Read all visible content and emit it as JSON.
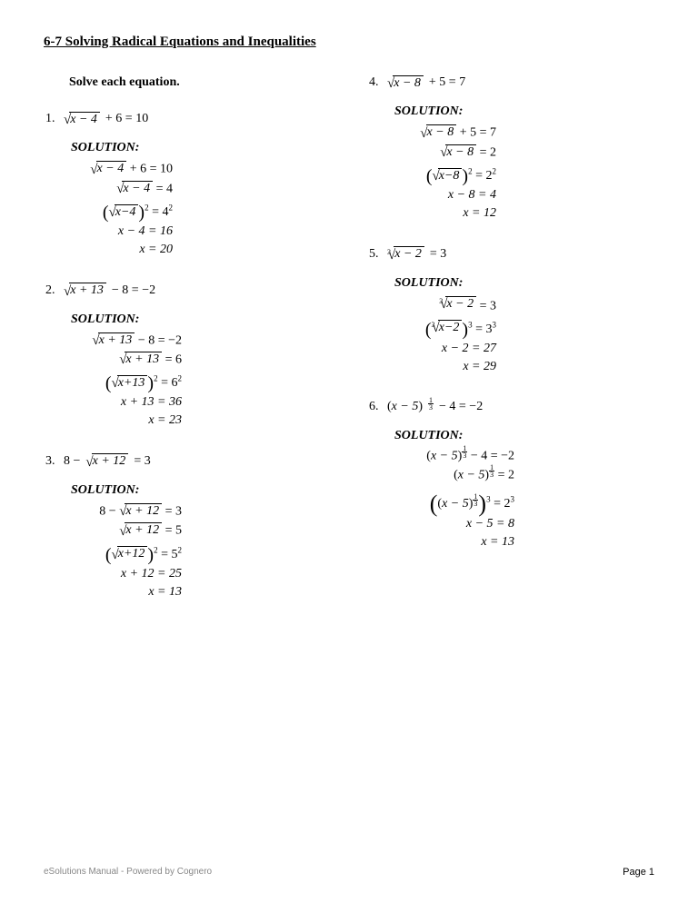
{
  "title": "6-7 Solving Radical Equations and Inequalities",
  "instruction": "Solve each equation.",
  "solution_label": "SOLUTION:",
  "problems": {
    "p1": {
      "num": "1.",
      "eq_arg": "x − 4",
      "eq_rest": " + 6 = 10",
      "w1_arg": "x − 4",
      "w1_rest": " + 6 = 10",
      "w2_arg": "x − 4",
      "w2_rest": " = 4",
      "w3_arg": "x−4",
      "w3_rhs": " = 4",
      "w4": "x − 4 = 16",
      "w5": "x = 20"
    },
    "p2": {
      "num": "2.",
      "eq_arg": "x + 13",
      "eq_rest": " − 8 = −2",
      "w1_arg": "x + 13",
      "w1_rest": " − 8 = −2",
      "w2_arg": "x + 13",
      "w2_rest": " = 6",
      "w3_arg": "x+13",
      "w3_rhs": " = 6",
      "w4": "x + 13 = 36",
      "w5": "x = 23"
    },
    "p3": {
      "num": "3.",
      "eq_pre": "8 − ",
      "eq_arg": "x + 12",
      "eq_rest": " = 3",
      "w1_pre": "8 − ",
      "w1_arg": "x + 12",
      "w1_rest": " = 3",
      "w2_arg": "x + 12",
      "w2_rest": " = 5",
      "w3_arg": "x+12",
      "w3_rhs": " = 5",
      "w4": "x + 12 = 25",
      "w5": "x = 13"
    },
    "p4": {
      "num": "4.",
      "eq_arg": "x − 8",
      "eq_rest": " + 5 = 7",
      "w1_arg": "x − 8",
      "w1_rest": " + 5 = 7",
      "w2_arg": "x − 8",
      "w2_rest": " = 2",
      "w3_arg": "x−8",
      "w3_rhs": " = 2",
      "w4": "x − 8 = 4",
      "w5": "x = 12"
    },
    "p5": {
      "num": "5.",
      "idx": "3",
      "eq_arg": "x − 2",
      "eq_rest": " = 3",
      "w1_idx": "3",
      "w1_arg": "x − 2",
      "w1_rest": " = 3",
      "w2_idx": "3",
      "w2_arg": "x−2",
      "w2_rhs": " = 3",
      "w3": "x − 2 = 27",
      "w4": "x = 29"
    },
    "p6": {
      "num": "6.",
      "base": "x − 5",
      "exp_n": "1",
      "exp_d": "3",
      "eq_rest": " − 4 = −2",
      "w1_base": "x − 5",
      "w1_rest": " − 4 = −2",
      "w2_base": "x − 5",
      "w2_rest": " = 2",
      "w3_base": "x − 5",
      "w3_rhs": " = 2",
      "w4": "x − 5 = 8",
      "w5": "x = 13"
    }
  },
  "footer_left": "eSolutions Manual - Powered by Cognero",
  "footer_right": "Page 1",
  "sup2": "2",
  "sup3": "3"
}
